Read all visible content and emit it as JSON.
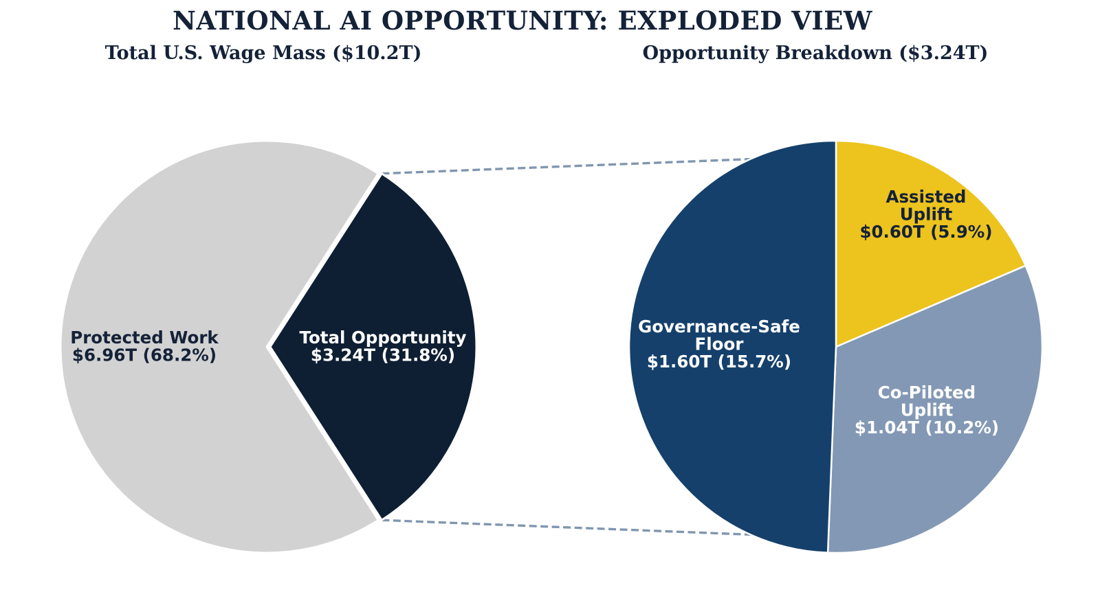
{
  "header": {
    "title": "NATIONAL AI OPPORTUNITY: EXPLODED VIEW"
  },
  "palette": {
    "background": "#ffffff",
    "navy_text": "#142238",
    "white_text": "#ffffff",
    "connector": "#8096b0"
  },
  "connector": {
    "style": "dashed",
    "color": "#8096b0"
  },
  "chart_data": [
    {
      "type": "pie",
      "name": "wage-mass-pie",
      "title": "Total U.S. Wage Mass ($10.2T)",
      "total_label": "$10.2T",
      "units": "trillion USD",
      "slices": [
        {
          "label": "Protected Work",
          "value": 6.96,
          "pct": 68.2,
          "lines": [
            "Protected Work",
            "$6.96T (68.2%)"
          ],
          "color": "#d2d2d2",
          "label_color": "#142238",
          "exploded": false
        },
        {
          "label": "Total Opportunity",
          "value": 3.24,
          "pct": 31.8,
          "lines": [
            "Total Opportunity",
            "$3.24T (31.8%)"
          ],
          "color": "#0e1f33",
          "label_color": "#ffffff",
          "exploded": true
        }
      ]
    },
    {
      "type": "pie",
      "name": "opportunity-breakdown-pie",
      "title": "Opportunity Breakdown ($3.24T)",
      "total_label": "$3.24T",
      "units": "trillion USD",
      "slices": [
        {
          "label": "Assisted Uplift",
          "value": 0.6,
          "pct": 5.9,
          "lines": [
            "Assisted",
            "Uplift",
            "$0.60T (5.9%)"
          ],
          "color": "#edc31e",
          "label_color": "#142238"
        },
        {
          "label": "Co-Piloted Uplift",
          "value": 1.04,
          "pct": 10.2,
          "lines": [
            "Co-Piloted",
            "Uplift",
            "$1.04T (10.2%)"
          ],
          "color": "#8398b4",
          "label_color": "#ffffff"
        },
        {
          "label": "Governance-Safe Floor",
          "value": 1.6,
          "pct": 15.7,
          "lines": [
            "Governance-Safe",
            "Floor",
            "$1.60T (15.7%)"
          ],
          "color": "#15406b",
          "label_color": "#ffffff"
        }
      ]
    }
  ]
}
